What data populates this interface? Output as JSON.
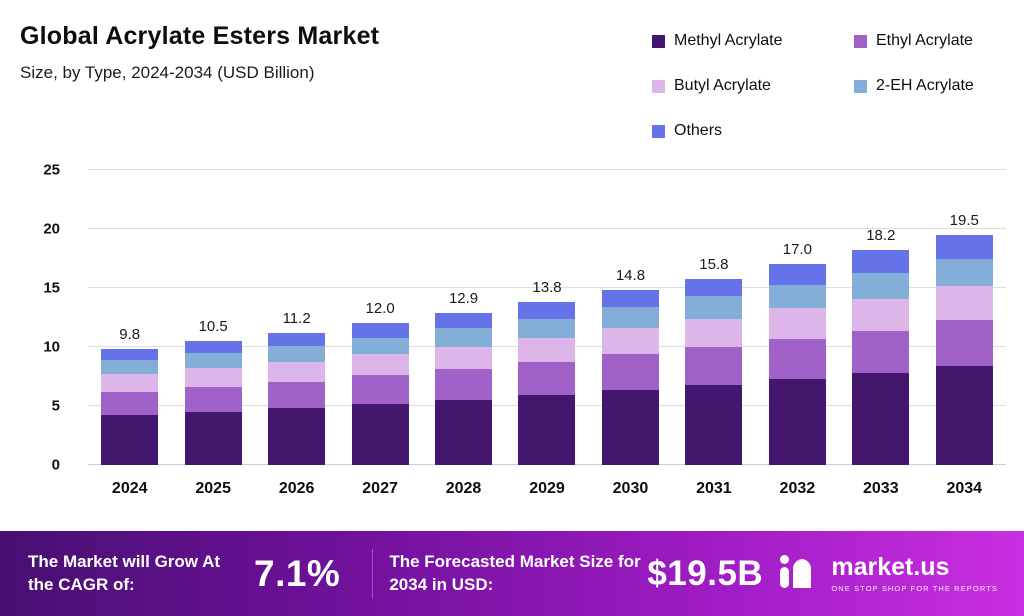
{
  "header": {
    "title": "Global Acrylate Esters Market",
    "subtitle": "Size, by Type, 2024-2034 (USD Billion)"
  },
  "chart_data": {
    "type": "bar",
    "stacked": true,
    "title": "Global Acrylate Esters Market",
    "subtitle": "Size, by Type, 2024-2034 (USD Billion)",
    "categories": [
      "2024",
      "2025",
      "2026",
      "2027",
      "2028",
      "2029",
      "2030",
      "2031",
      "2032",
      "2033",
      "2034"
    ],
    "totals": [
      9.8,
      10.5,
      11.2,
      12.0,
      12.9,
      13.8,
      14.8,
      15.8,
      17.0,
      18.2,
      19.5
    ],
    "total_labels": [
      "9.8",
      "10.5",
      "11.2",
      "12.0",
      "12.9",
      "13.8",
      "14.8",
      "15.8",
      "17.0",
      "18.2",
      "19.5"
    ],
    "series": [
      {
        "name": "Methyl Acrylate",
        "color": "#44176e",
        "values": [
          4.2,
          4.5,
          4.8,
          5.2,
          5.5,
          5.9,
          6.4,
          6.8,
          7.3,
          7.8,
          8.4
        ]
      },
      {
        "name": "Ethyl Acrylate",
        "color": "#a062c9",
        "values": [
          2.0,
          2.1,
          2.2,
          2.4,
          2.6,
          2.8,
          3.0,
          3.2,
          3.4,
          3.6,
          3.9
        ]
      },
      {
        "name": "Butyl Acrylate",
        "color": "#dcb5e9",
        "values": [
          1.5,
          1.6,
          1.7,
          1.8,
          1.9,
          2.1,
          2.2,
          2.4,
          2.6,
          2.7,
          2.9
        ]
      },
      {
        "name": "2-EH Acrylate",
        "color": "#82aed8",
        "values": [
          1.2,
          1.3,
          1.4,
          1.4,
          1.6,
          1.6,
          1.8,
          1.9,
          2.0,
          2.2,
          2.3
        ]
      },
      {
        "name": "Others",
        "color": "#6672e8",
        "values": [
          0.9,
          1.0,
          1.1,
          1.2,
          1.3,
          1.4,
          1.4,
          1.5,
          1.7,
          1.9,
          2.0
        ]
      }
    ],
    "y_ticks": [
      "0",
      "5",
      "10",
      "15",
      "20",
      "25"
    ],
    "ylim": [
      0,
      25
    ],
    "grid": true,
    "legend_position": "top-right",
    "xlabel": "",
    "ylabel": ""
  },
  "footer": {
    "cagr_label": "The Market will Grow At the CAGR of:",
    "cagr_value": "7.1%",
    "forecast_label": "The Forecasted Market Size for 2034 in USD:",
    "forecast_value": "$19.5B",
    "brand": "market.us",
    "brand_tagline": "ONE STOP SHOP FOR THE REPORTS"
  }
}
